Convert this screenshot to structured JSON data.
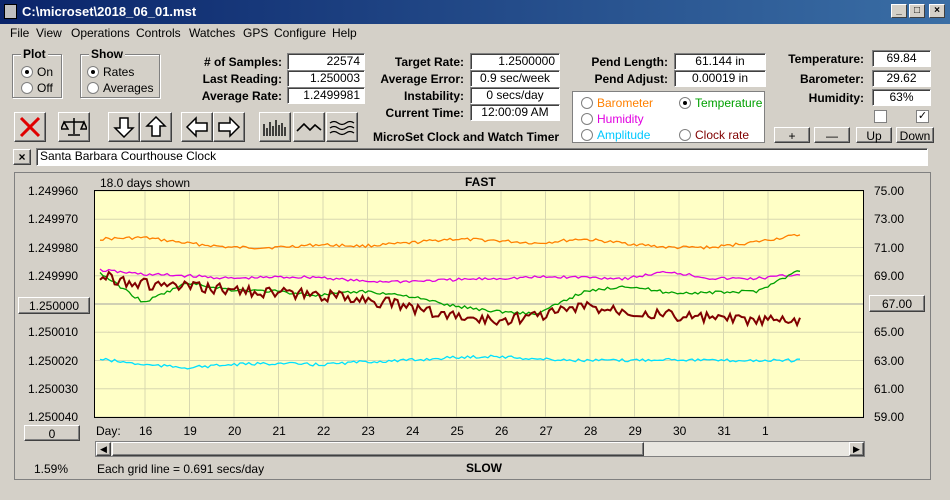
{
  "window": {
    "title": "C:\\microset\\2018_06_01.mst",
    "buttons": [
      "_",
      "□",
      "×"
    ]
  },
  "menu": [
    "File",
    "View",
    "Operations",
    "Controls",
    "Watches",
    "GPS",
    "Configure",
    "Help"
  ],
  "plot_group": {
    "title": "Plot",
    "options": [
      {
        "label": "On",
        "checked": true
      },
      {
        "label": "Off",
        "checked": false
      }
    ]
  },
  "show_group": {
    "title": "Show",
    "options": [
      {
        "label": "Rates",
        "checked": true
      },
      {
        "label": "Averages",
        "checked": false
      }
    ]
  },
  "stats": {
    "samples_label": "# of Samples:",
    "samples": "22574",
    "last_reading_label": "Last Reading:",
    "last_reading": "1.250003",
    "average_rate_label": "Average Rate:",
    "average_rate": "1.2499981"
  },
  "rates": {
    "target_label": "Target Rate:",
    "target": "1.2500000",
    "avg_error_label": "Average Error:",
    "avg_error": "0.9 sec/week",
    "instability_label": "Instability:",
    "instability": "0 secs/day",
    "current_time_label": "Current Time:",
    "current_time": "12:00:09 AM",
    "caption": "MicroSet Clock and Watch Timer"
  },
  "pendulum": {
    "length_label": "Pend Length:",
    "length": "61.144 in",
    "adjust_label": "Pend Adjust:",
    "adjust": "0.00019 in"
  },
  "env_select": {
    "options": [
      {
        "label": "Barometer",
        "color": "#ff8000",
        "checked": false
      },
      {
        "label": "Temperature",
        "color": "#00a000",
        "checked": true
      },
      {
        "label": "Humidity",
        "color": "#e000e0",
        "checked": false
      },
      {
        "label": "Amplitude",
        "color": "#00c8ff",
        "checked": false
      },
      {
        "label": "Clock rate",
        "color": "#800000",
        "checked": false
      }
    ]
  },
  "environment": {
    "temperature_label": "Temperature:",
    "temperature": "69.84",
    "barometer_label": "Barometer:",
    "barometer": "29.62",
    "humidity_label": "Humidity:",
    "humidity": "63%",
    "checkbox1": "",
    "checkbox2": "✓"
  },
  "scale_buttons": [
    "+",
    "—",
    "Up",
    "Down"
  ],
  "clock_name": {
    "close": "×",
    "value": "Santa Barbara Courthouse Clock"
  },
  "chart_data": {
    "type": "line",
    "top_label": "FAST",
    "bottom_label": "SLOW",
    "days_shown": "18.0 days shown",
    "grid_note": "Each grid line = 0.691 secs/day",
    "left_axis": {
      "ticks": [
        "1.249960",
        "1.249970",
        "1.249980",
        "1.249990",
        "1.250000",
        "1.250010",
        "1.250020",
        "1.250030",
        "1.250040"
      ],
      "range": [
        1.24996,
        1.25004
      ],
      "reversed": true
    },
    "right_axis": {
      "ticks": [
        "75.00",
        "73.00",
        "71.00",
        "69.00",
        "67.00",
        "65.00",
        "63.00",
        "61.00",
        "59.00"
      ],
      "range": [
        59,
        75
      ]
    },
    "left_button": "1.250000",
    "right_button": "67.00",
    "zero_button": "0",
    "percent": "1.59%",
    "x_label": "Day:",
    "x_ticks": [
      "16",
      "19",
      "20",
      "21",
      "22",
      "23",
      "24",
      "25",
      "26",
      "27",
      "28",
      "29",
      "30",
      "31",
      "1"
    ],
    "series": [
      {
        "name": "Barometer",
        "color": "#ff8000",
        "values": [
          71.6,
          71.7,
          71.3,
          71.0,
          71.0,
          71.2,
          71.1,
          71.3,
          71.6,
          71.5,
          71.3,
          71.6,
          71.3,
          71.0,
          71.0,
          71.4,
          71.9
        ]
      },
      {
        "name": "Humidity",
        "color": "#e000e0",
        "values": [
          69.4,
          69.1,
          69.0,
          68.8,
          68.9,
          68.9,
          68.6,
          68.6,
          68.7,
          68.8,
          68.9,
          68.9,
          68.8,
          69.3,
          68.8,
          68.8,
          69.1
        ]
      },
      {
        "name": "Temperature",
        "color": "#00a000",
        "values": [
          69.2,
          67.1,
          68.5,
          68.0,
          67.9,
          67.6,
          67.9,
          67.6,
          66.9,
          66.5,
          66.3,
          67.8,
          68.3,
          67.8,
          67.8,
          67.9,
          69.4
        ]
      },
      {
        "name": "Amplitude",
        "color": "#00e0ff",
        "values": [
          63.1,
          62.7,
          62.5,
          62.7,
          62.8,
          62.7,
          62.9,
          63.0,
          63.2,
          63.3,
          63.1,
          63.0,
          63.0,
          63.1,
          63.0,
          63.0,
          63.0
        ]
      },
      {
        "name": "Clock rate",
        "color": "#800000",
        "values": [
          1.24999,
          1.249993,
          1.249994,
          1.249995,
          1.249996,
          1.249997,
          1.249998,
          1.250001,
          1.250004,
          1.250006,
          1.250004,
          1.250001,
          1.250002,
          1.250004,
          1.250005,
          1.250006,
          1.250006
        ]
      }
    ]
  }
}
